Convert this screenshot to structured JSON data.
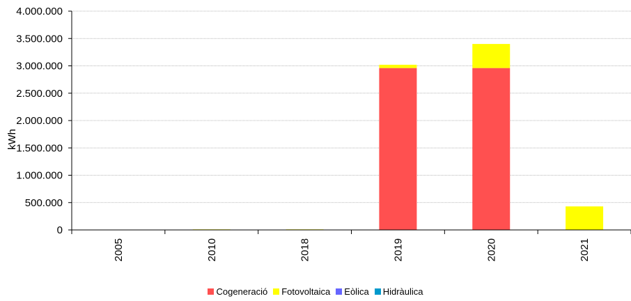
{
  "chart_data": {
    "type": "bar",
    "stacked": true,
    "categories": [
      "2005",
      "2010",
      "2018",
      "2019",
      "2020",
      "2021"
    ],
    "series": [
      {
        "name": "Cogeneració",
        "color": "#ff5050",
        "values": [
          0,
          0,
          0,
          2960000,
          2960000,
          0
        ]
      },
      {
        "name": "Fotovoltaica",
        "color": "#ffff00",
        "values": [
          0,
          10000,
          10000,
          60000,
          440000,
          430000
        ]
      },
      {
        "name": "Eòlica",
        "color": "#6666ff",
        "values": [
          0,
          0,
          0,
          0,
          0,
          0
        ]
      },
      {
        "name": "Hidràulica",
        "color": "#0099cc",
        "values": [
          0,
          0,
          0,
          0,
          0,
          0
        ]
      }
    ],
    "ylabel": "kWh",
    "xlabel": "",
    "ylim": [
      0,
      4000000
    ],
    "yticks": [
      0,
      500000,
      1000000,
      1500000,
      2000000,
      2500000,
      3000000,
      3500000,
      4000000
    ],
    "ytick_labels": [
      "0",
      "500.000",
      "1.000.000",
      "1.500.000",
      "2.000.000",
      "2.500.000",
      "3.000.000",
      "3.500.000",
      "4.000.000"
    ],
    "grid": true,
    "legend_position": "bottom"
  }
}
